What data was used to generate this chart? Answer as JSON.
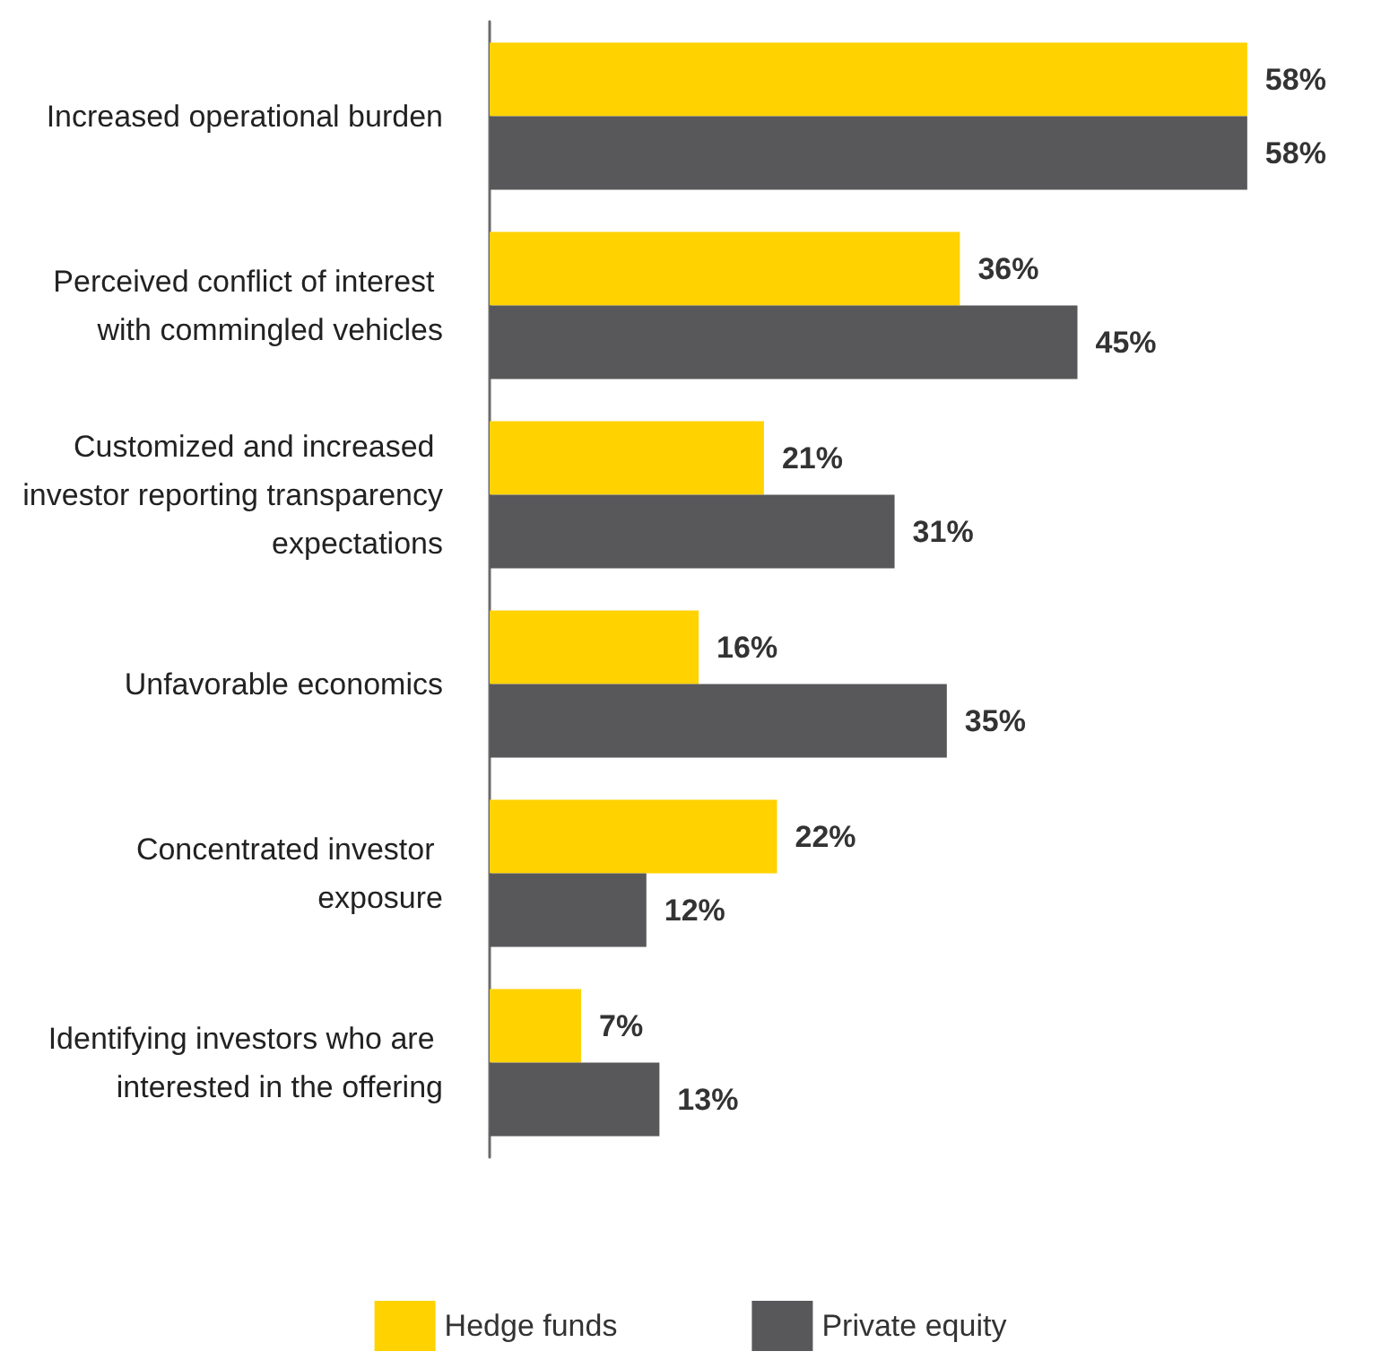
{
  "chart_data": {
    "type": "bar",
    "orientation": "horizontal",
    "legend": "bottom",
    "categories": [
      "Increased operational burden",
      "Perceived conflict of interest with commingled vehicles",
      "Customized and increased investor reporting transparency expectations",
      "Unfavorable economics",
      "Concentrated investor exposure",
      "Identifying investors who are interested in the offering"
    ],
    "series": [
      {
        "name": "Hedge funds",
        "color": "#ffd200",
        "values": [
          58,
          36,
          21,
          16,
          22,
          7
        ],
        "value_labels": [
          "58%",
          "36%",
          "21%",
          "16%",
          "22%",
          "7%"
        ]
      },
      {
        "name": "Private equity",
        "color": "#58585a",
        "values": [
          58,
          45,
          31,
          35,
          12,
          13
        ],
        "value_labels": [
          "58%",
          "45%",
          "31%",
          "35%",
          "12%",
          "13%"
        ]
      }
    ]
  }
}
